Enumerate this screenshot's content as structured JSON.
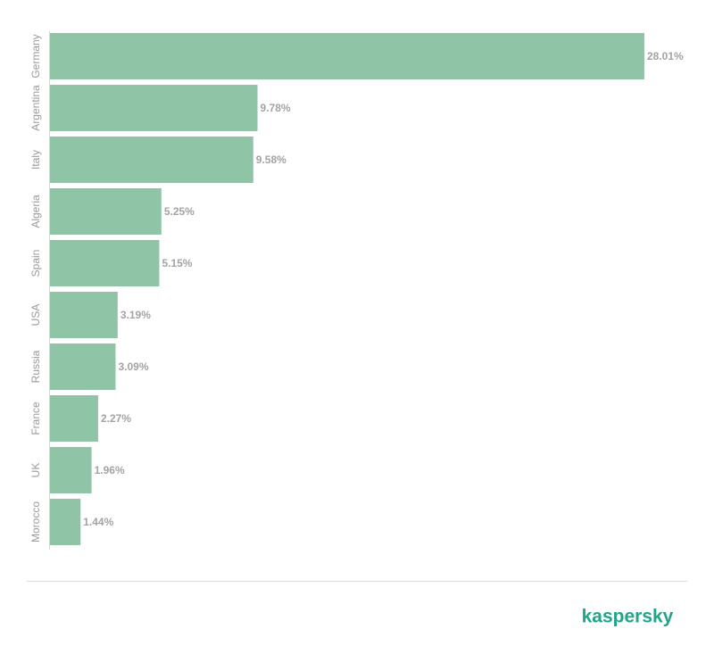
{
  "chart_data": {
    "type": "bar",
    "orientation": "horizontal",
    "categories": [
      "Germany",
      "Argentina",
      "Italy",
      "Algeria",
      "Spain",
      "USA",
      "Russia",
      "France",
      "UK",
      "Morocco"
    ],
    "values": [
      28.01,
      9.78,
      9.58,
      5.25,
      5.15,
      3.19,
      3.09,
      2.27,
      1.96,
      1.44
    ],
    "value_labels": [
      "28.01%",
      "9.78%",
      "9.58%",
      "5.25%",
      "5.15%",
      "3.19%",
      "3.09%",
      "2.27%",
      "1.96%",
      "1.44%"
    ],
    "color": "#8fc4a7",
    "xlim": [
      0,
      28.01
    ]
  },
  "brand": "kaspersky"
}
